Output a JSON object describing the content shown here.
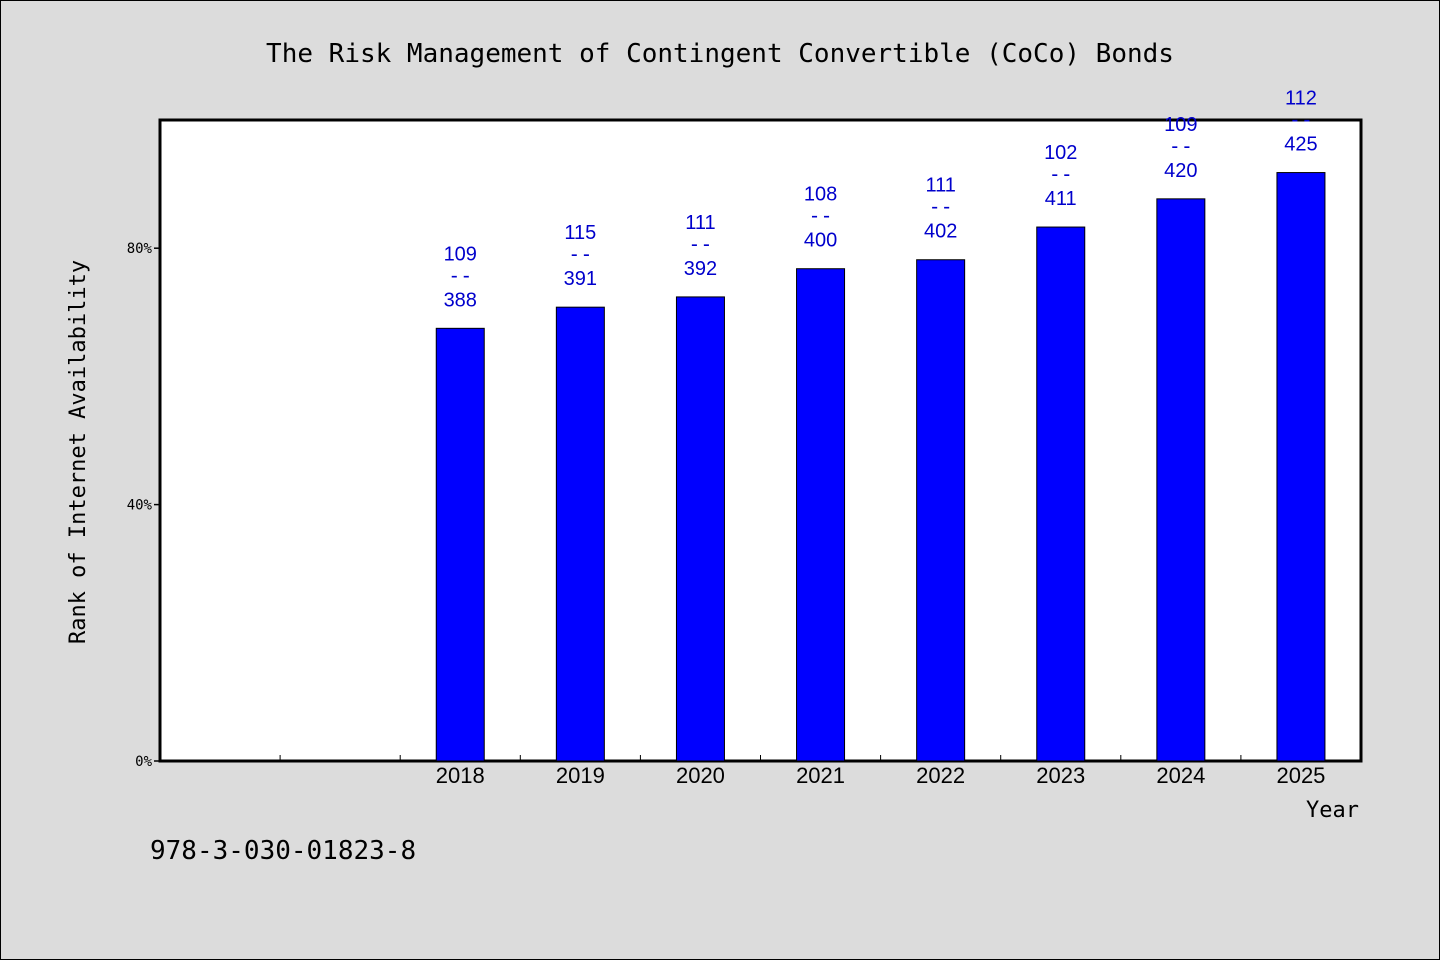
{
  "chart_data": {
    "type": "bar",
    "title": "The Risk Management of Contingent Convertible (CoCo) Bonds",
    "xlabel": "Year",
    "ylabel": "Rank of Internet Availability",
    "categories": [
      "",
      "",
      "2018",
      "2019",
      "2020",
      "2021",
      "2022",
      "2023",
      "2024",
      "2025"
    ],
    "values": [
      null,
      null,
      0.281,
      0.294,
      0.283,
      0.27,
      0.276,
      0.248,
      0.26,
      0.264
    ],
    "bar_heights_percent": [
      null,
      null,
      67.5,
      70.8,
      72.4,
      76.8,
      78.2,
      83.3,
      87.7,
      91.8
    ],
    "data_labels": [
      null,
      null,
      {
        "num": "109",
        "den": "388"
      },
      {
        "num": "115",
        "den": "391"
      },
      {
        "num": "111",
        "den": "392"
      },
      {
        "num": "108",
        "den": "400"
      },
      {
        "num": "111",
        "den": "402"
      },
      {
        "num": "102",
        "den": "411"
      },
      {
        "num": "109",
        "den": "420"
      },
      {
        "num": "112",
        "den": "425"
      }
    ],
    "yticks": [
      "0%",
      "40%",
      "80%"
    ],
    "ytick_values": [
      0,
      40,
      80
    ],
    "ylim": [
      0,
      100
    ],
    "grid": false,
    "bar_color": "#0000ff",
    "label_color": "#0000cc"
  },
  "footer": {
    "isbn": "978-3-030-01823-8"
  }
}
